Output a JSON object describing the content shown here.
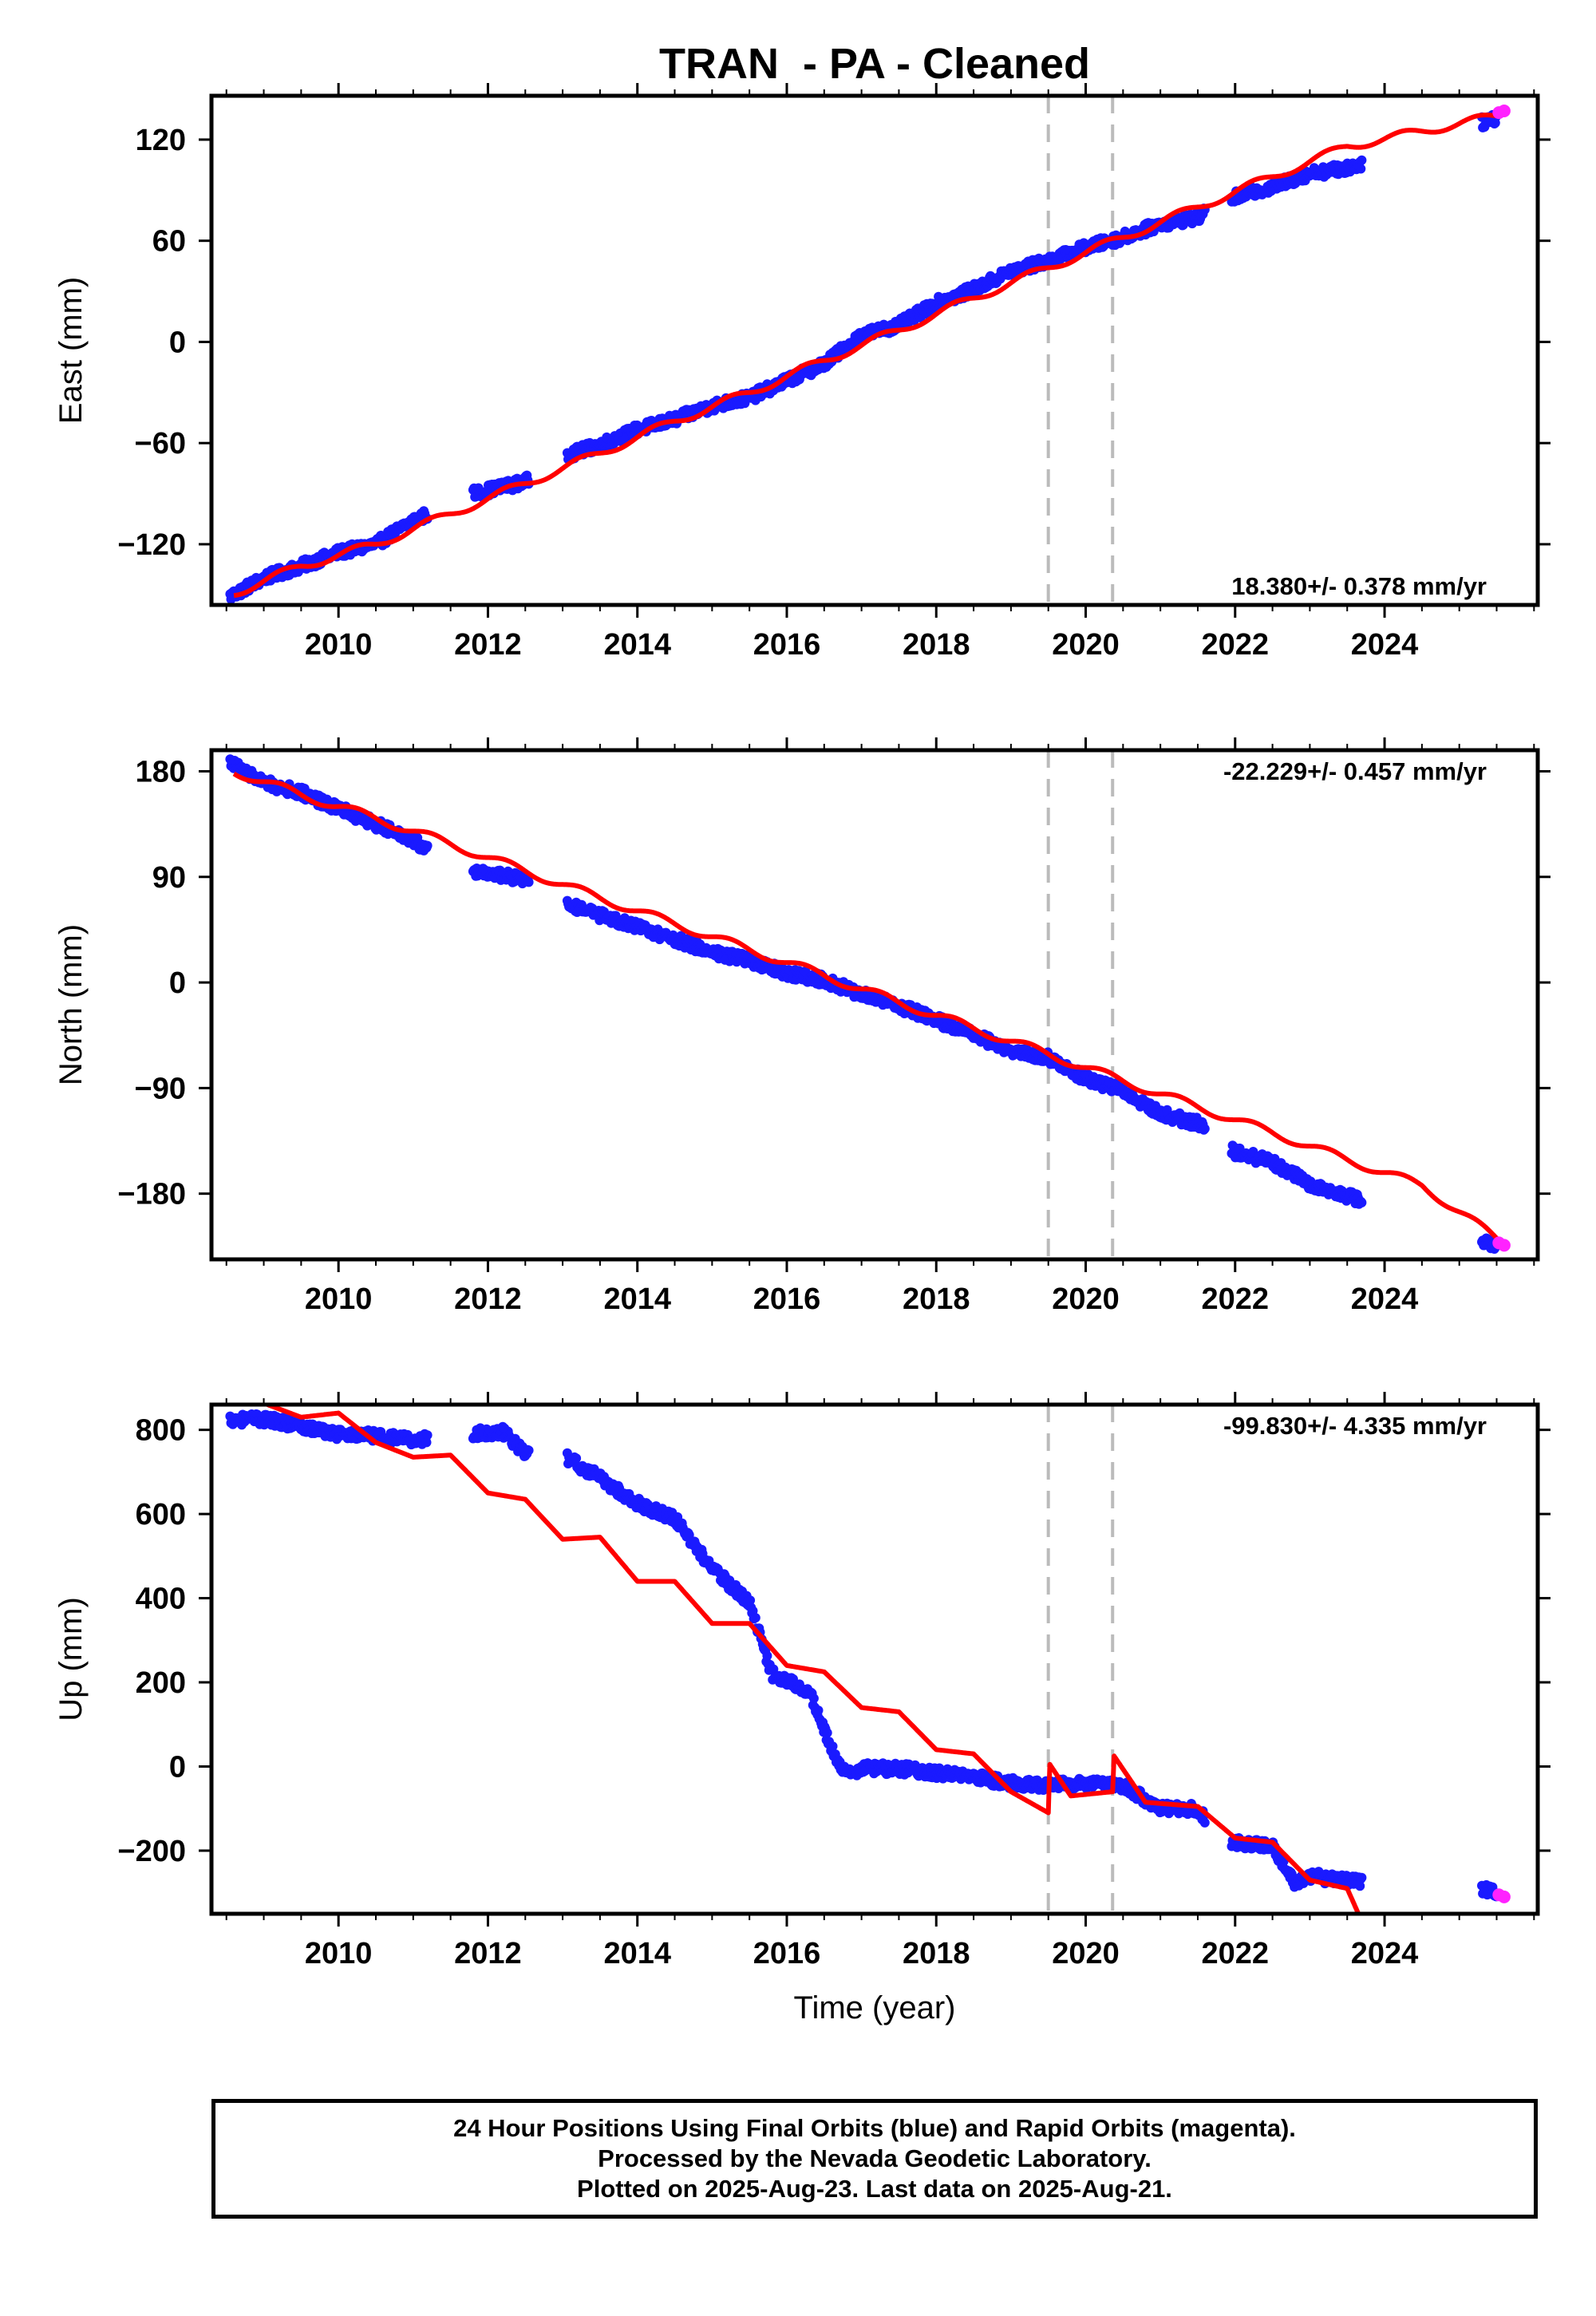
{
  "title": "TRAN  - PA - Cleaned",
  "footer": {
    "line1": "24 Hour Positions Using Final Orbits (blue) and Rapid Orbits (magenta).",
    "line2": "Processed by the Nevada Geodetic Laboratory.",
    "line3": "Plotted on 2025-Aug-23. Last data on 2025-Aug-21."
  },
  "colors": {
    "final_orbits": "#1a1aff",
    "rapid_orbits": "#ff22ff",
    "model": "#ff0000",
    "event_lines": "#bbbbbb"
  },
  "chart_data": [
    {
      "type": "scatter",
      "component": "east",
      "xlabel": "",
      "ylabel": "East (mm)",
      "xlim": [
        2008.3,
        2026.05
      ],
      "ylim": [
        -156,
        146
      ],
      "xticks": [
        2010,
        2012,
        2014,
        2016,
        2018,
        2020,
        2022,
        2024
      ],
      "xtick_labels": [
        "2010",
        "2012",
        "2014",
        "2016",
        "2018",
        "2020",
        "2022",
        "2024"
      ],
      "yticks": [
        -120,
        -60,
        0,
        60,
        120
      ],
      "ytick_labels": [
        "−120",
        "−60",
        "0",
        "60",
        "120"
      ],
      "rate_label": "18.380+/- 0.378 mm/yr",
      "rate_label_position": "bottom-right",
      "event_lines": [
        2019.5,
        2020.36
      ],
      "gaps": [
        [
          2011.2,
          2011.8
        ],
        [
          2012.55,
          2013.05
        ],
        [
          2021.6,
          2021.95
        ],
        [
          2023.7,
          2025.3
        ]
      ],
      "series": [
        {
          "name": "Final Orbits (blue)",
          "x_range": [
            2008.55,
            2025.52
          ],
          "x": [
            2008.55,
            2009.0,
            2009.5,
            2010.0,
            2010.5,
            2011.0,
            2011.2,
            2011.8,
            2012.5,
            2013.0,
            2013.5,
            2014.0,
            2014.5,
            2015.0,
            2015.5,
            2016.0,
            2016.5,
            2017.0,
            2017.5,
            2018.0,
            2018.5,
            2019.0,
            2019.5,
            2020.0,
            2020.5,
            2021.0,
            2021.5,
            2022.0,
            2022.5,
            2023.0,
            2023.5,
            2025.3,
            2025.5
          ],
          "y": [
            -151,
            -140,
            -133,
            -125,
            -120,
            -106,
            -102,
            -90,
            -83,
            -68,
            -61,
            -52,
            -46,
            -38,
            -33,
            -23,
            -13,
            4,
            10,
            23,
            31,
            42,
            48,
            56,
            62,
            70,
            74,
            86,
            92,
            100,
            103,
            130,
            133
          ]
        },
        {
          "name": "Rapid Orbits (magenta)",
          "x": [
            2025.53,
            2025.6
          ],
          "y": [
            136,
            137
          ]
        },
        {
          "name": "Model fit (red)",
          "x": [
            2008.6,
            2009.5,
            2010.5,
            2011.5,
            2012.5,
            2013.5,
            2014.5,
            2015.5,
            2016.5,
            2017.5,
            2018.5,
            2019.5,
            2020.5,
            2021.5,
            2022.5,
            2023.5,
            2024.5,
            2025.5
          ],
          "y": [
            -149,
            -133,
            -120,
            -102,
            -84,
            -66,
            -47,
            -30,
            -11,
            7,
            26,
            44,
            62,
            80,
            98,
            116,
            125,
            134
          ]
        }
      ]
    },
    {
      "type": "scatter",
      "component": "north",
      "xlabel": "",
      "ylabel": "North (mm)",
      "xlim": [
        2008.3,
        2026.05
      ],
      "ylim": [
        -236,
        198
      ],
      "xticks": [
        2010,
        2012,
        2014,
        2016,
        2018,
        2020,
        2022,
        2024
      ],
      "xtick_labels": [
        "2010",
        "2012",
        "2014",
        "2016",
        "2018",
        "2020",
        "2022",
        "2024"
      ],
      "yticks": [
        -180,
        -90,
        0,
        90,
        180
      ],
      "ytick_labels": [
        "−180",
        "−90",
        "0",
        "90",
        "180"
      ],
      "rate_label": "-22.229+/- 0.457 mm/yr",
      "rate_label_position": "top-right",
      "event_lines": [
        2019.5,
        2020.36
      ],
      "gaps": [
        [
          2011.2,
          2011.8
        ],
        [
          2012.55,
          2013.05
        ],
        [
          2021.6,
          2021.95
        ],
        [
          2023.7,
          2025.3
        ]
      ],
      "series": [
        {
          "name": "Final Orbits (blue)",
          "x_range": [
            2008.55,
            2025.52
          ],
          "x": [
            2008.55,
            2009.0,
            2009.5,
            2010.0,
            2010.5,
            2011.0,
            2011.2,
            2011.8,
            2012.5,
            2013.0,
            2013.5,
            2014.0,
            2014.5,
            2015.0,
            2015.5,
            2016.0,
            2016.5,
            2017.0,
            2017.5,
            2018.0,
            2018.5,
            2019.0,
            2019.5,
            2020.0,
            2020.5,
            2021.0,
            2021.5,
            2022.0,
            2022.5,
            2023.0,
            2023.5,
            2025.3,
            2025.5
          ],
          "y": [
            188,
            170,
            162,
            148,
            135,
            122,
            112,
            95,
            88,
            68,
            57,
            47,
            37,
            26,
            19,
            8,
            2,
            -10,
            -20,
            -32,
            -45,
            -58,
            -64,
            -82,
            -92,
            -112,
            -120,
            -145,
            -153,
            -172,
            -182,
            -220,
            -224
          ]
        },
        {
          "name": "Rapid Orbits (magenta)",
          "x": [
            2025.53,
            2025.6
          ],
          "y": [
            -222,
            -224
          ]
        },
        {
          "name": "Model fit (red)",
          "x": [
            2008.6,
            2009.5,
            2010.5,
            2011.5,
            2012.5,
            2013.5,
            2014.5,
            2015.5,
            2016.5,
            2017.5,
            2018.5,
            2019.5,
            2020.5,
            2021.5,
            2022.5,
            2023.5,
            2024.5,
            2025.5
          ],
          "y": [
            180,
            160,
            140,
            118,
            95,
            72,
            50,
            28,
            6,
            -17,
            -39,
            -61,
            -84,
            -106,
            -128,
            -151,
            -173,
            -218
          ]
        }
      ]
    },
    {
      "type": "scatter",
      "component": "up",
      "xlabel": "Time (year)",
      "ylabel": "Up (mm)",
      "xlim": [
        2008.3,
        2026.05
      ],
      "ylim": [
        -350,
        860
      ],
      "xticks": [
        2010,
        2012,
        2014,
        2016,
        2018,
        2020,
        2022,
        2024
      ],
      "xtick_labels": [
        "2010",
        "2012",
        "2014",
        "2016",
        "2018",
        "2020",
        "2022",
        "2024"
      ],
      "yticks": [
        -200,
        0,
        200,
        400,
        600,
        800
      ],
      "ytick_labels": [
        "−200",
        "0",
        "200",
        "400",
        "600",
        "800"
      ],
      "rate_label": "-99.830+/- 4.335 mm/yr",
      "rate_label_position": "top-right",
      "event_lines": [
        2019.5,
        2020.36
      ],
      "gaps": [
        [
          2011.2,
          2011.8
        ],
        [
          2012.55,
          2013.05
        ],
        [
          2021.6,
          2021.95
        ],
        [
          2023.7,
          2025.3
        ]
      ],
      "series": [
        {
          "name": "Final Orbits (blue)",
          "x": [
            2008.55,
            2009.0,
            2009.5,
            2010.0,
            2010.5,
            2011.0,
            2011.2,
            2011.8,
            2012.2,
            2012.5,
            2013.0,
            2013.5,
            2014.0,
            2014.5,
            2015.0,
            2015.5,
            2015.8,
            2016.0,
            2016.3,
            2016.6,
            2016.8,
            2017.0,
            2017.5,
            2018.0,
            2018.5,
            2019.0,
            2019.5,
            2020.0,
            2020.5,
            2021.0,
            2021.5,
            2021.8,
            2022.0,
            2022.5,
            2022.8,
            2023.0,
            2023.4,
            2023.7,
            2025.3,
            2025.5
          ],
          "y": [
            825,
            825,
            810,
            790,
            785,
            775,
            780,
            790,
            795,
            745,
            740,
            685,
            625,
            590,
            470,
            390,
            220,
            205,
            180,
            40,
            -20,
            -5,
            -5,
            -15,
            -25,
            -40,
            -45,
            -40,
            -45,
            -100,
            -100,
            -180,
            -180,
            -190,
            -280,
            -260,
            -270,
            -275,
            -290,
            -300
          ]
        },
        {
          "name": "Rapid Orbits (magenta)",
          "x": [
            2025.53,
            2025.6
          ],
          "y": [
            -305,
            -310
          ]
        },
        {
          "name": "Model fit (red)",
          "x": [
            2009.05,
            2009.5,
            2010.0,
            2010.5,
            2011.0,
            2011.5,
            2012.0,
            2012.5,
            2013.0,
            2013.5,
            2014.0,
            2014.5,
            2015.0,
            2015.5,
            2016.0,
            2016.5,
            2017.0,
            2017.5,
            2018.0,
            2018.5,
            2019.0,
            2019.5,
            2019.52,
            2019.8,
            2020.36,
            2020.38,
            2020.8,
            2021.5,
            2022.0,
            2022.5,
            2023.0,
            2023.5,
            2023.65
          ],
          "y": [
            860,
            830,
            840,
            770,
            735,
            740,
            650,
            635,
            540,
            545,
            440,
            440,
            340,
            340,
            240,
            225,
            140,
            130,
            40,
            30,
            -60,
            -110,
            5,
            -70,
            -60,
            25,
            -85,
            -95,
            -170,
            -180,
            -270,
            -290,
            -350
          ]
        }
      ]
    }
  ]
}
